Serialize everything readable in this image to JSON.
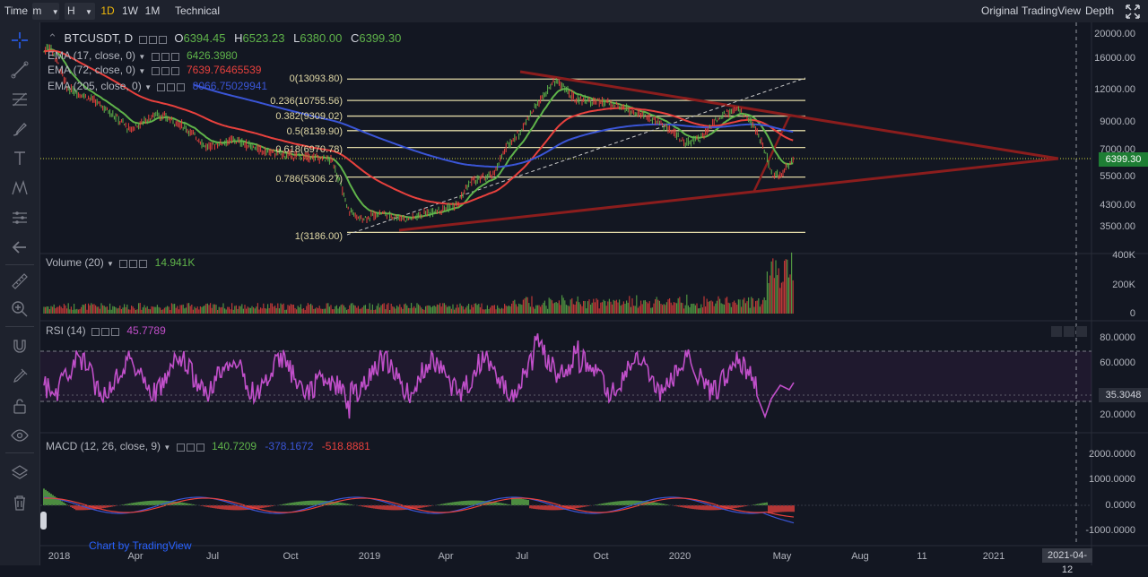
{
  "toolbar": {
    "time_label": "Time",
    "minute_label": "m",
    "hour_label": "H",
    "d1_label": "1D",
    "w1_label": "1W",
    "m1_label": "1M",
    "indicators_label": "Technical Ind",
    "view_original": "Original",
    "view_tradingview": "TradingView",
    "view_depth": "Depth"
  },
  "symbol": {
    "name": "BTCUSDT, D",
    "open_label": "O",
    "open": "6394.45",
    "high_label": "H",
    "high": "6523.23",
    "low_label": "L",
    "low": "6380.00",
    "close_label": "C",
    "close": "6399.30"
  },
  "ema": [
    {
      "label": "EMA (17, close, 0)",
      "value": "6426.3980",
      "color": "#5fb34a"
    },
    {
      "label": "EMA (72, close, 0)",
      "value": "7639.76465539",
      "color": "#e8413d"
    },
    {
      "label": "EMA (205, close, 0)",
      "value": "8066.75029941",
      "color": "#3a55d6"
    }
  ],
  "fib": [
    {
      "label": "0(13093.80)",
      "price": 13093.8
    },
    {
      "label": "0.236(10755.56)",
      "price": 10755.56
    },
    {
      "label": "0.382(9309.02)",
      "price": 9309.02
    },
    {
      "label": "0.5(8139.90)",
      "price": 8139.9
    },
    {
      "label": "0.618(6970.78)",
      "price": 6970.78
    },
    {
      "label": "0.786(5306.27)",
      "price": 5306.27
    },
    {
      "label": "1(3186.00)",
      "price": 3186.0
    }
  ],
  "price_axis": [
    "20000.00",
    "16000.00",
    "12000.00",
    "9000.00",
    "7000.00",
    "5500.00",
    "4300.00",
    "3500.00"
  ],
  "current_price": "6399.30",
  "volume": {
    "label": "Volume (20)",
    "value": "14.941K",
    "axis": [
      "400K",
      "200K",
      "0"
    ]
  },
  "rsi": {
    "label": "RSI (14)",
    "value": "45.7789",
    "axis": [
      "80.0000",
      "60.0000",
      "20.0000"
    ],
    "current": "35.3048"
  },
  "macd": {
    "label": "MACD (12, 26, close, 9)",
    "hist": "140.7209",
    "macd": "-378.1672",
    "signal": "-518.8881",
    "axis": [
      "2000.0000",
      "1000.0000",
      "0.0000",
      "-1000.0000"
    ]
  },
  "time_axis": [
    "2018",
    "Apr",
    "Jul",
    "Oct",
    "2019",
    "Apr",
    "Jul",
    "Oct",
    "2020",
    "May",
    "Aug",
    "11",
    "2021"
  ],
  "time_cursor": "2021-04-12",
  "watermark": "Chart by TradingView",
  "colors": {
    "accent": "#f0b90b",
    "up": "#5fb34a",
    "down": "#e8413d",
    "rsi": "#c04fc9"
  }
}
